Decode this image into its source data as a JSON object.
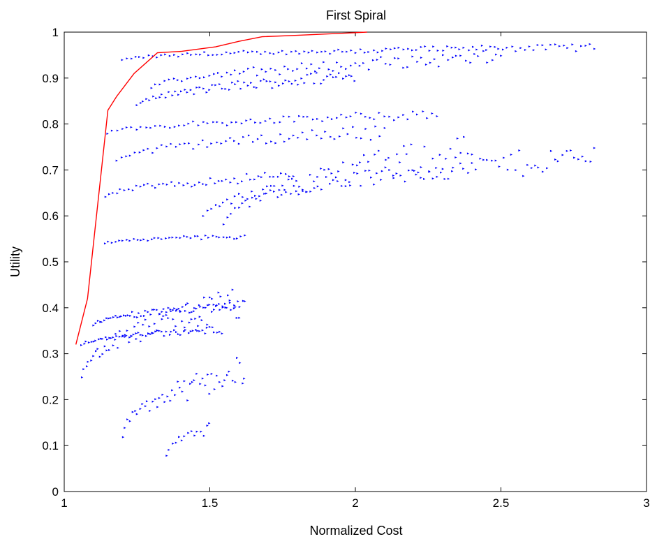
{
  "chart_data": {
    "type": "scatter",
    "title": "First Spiral",
    "xlabel": "Normalized Cost",
    "ylabel": "Utility",
    "xlim": [
      1,
      3
    ],
    "ylim": [
      0,
      1
    ],
    "x_ticks": [
      "1",
      "1.5",
      "2",
      "2.5",
      "3"
    ],
    "y_ticks": [
      "0",
      "0.1",
      "0.2",
      "0.3",
      "0.4",
      "0.5",
      "0.6",
      "0.7",
      "0.8",
      "0.9",
      "1"
    ],
    "grid": false,
    "legend": false,
    "colors": {
      "points": "#0000ff",
      "frontier": "#ff0000"
    },
    "series": [
      {
        "kind": "frontier-line",
        "color": "#ff0000",
        "x": [
          1.04,
          1.08,
          1.15,
          1.18,
          1.24,
          1.32,
          1.4,
          1.52,
          1.6,
          1.68,
          1.8,
          2.04
        ],
        "y": [
          0.32,
          0.42,
          0.83,
          0.86,
          0.91,
          0.955,
          0.958,
          0.968,
          0.98,
          0.99,
          0.993,
          1.0
        ]
      },
      {
        "kind": "scatter-bands",
        "color": "#0000ff",
        "bands": [
          {
            "x0": 1.2,
            "x1": 2.82,
            "y_start": 0.94,
            "y_end": 0.975,
            "n": 110
          },
          {
            "x0": 1.3,
            "x1": 2.5,
            "y_start": 0.88,
            "y_end": 0.96,
            "n": 80
          },
          {
            "x0": 1.25,
            "x1": 2.0,
            "y_start": 0.84,
            "y_end": 0.92,
            "n": 70
          },
          {
            "x0": 1.15,
            "x1": 2.28,
            "y_start": 0.78,
            "y_end": 0.83,
            "n": 70
          },
          {
            "x0": 1.18,
            "x1": 2.1,
            "y_start": 0.72,
            "y_end": 0.8,
            "n": 60
          },
          {
            "x0": 1.48,
            "x1": 2.82,
            "y_start": 0.6,
            "y_end": 0.76,
            "n": 100
          },
          {
            "x0": 1.55,
            "x1": 2.4,
            "y_start": 0.58,
            "y_end": 0.785,
            "n": 70
          },
          {
            "x0": 1.14,
            "x1": 1.8,
            "y_start": 0.64,
            "y_end": 0.7,
            "n": 50
          },
          {
            "x0": 1.14,
            "x1": 1.62,
            "y_start": 0.54,
            "y_end": 0.56,
            "n": 40
          },
          {
            "x0": 1.1,
            "x1": 1.62,
            "y_start": 0.36,
            "y_end": 0.42,
            "n": 70
          },
          {
            "x0": 1.06,
            "x1": 1.54,
            "y_start": 0.32,
            "y_end": 0.36,
            "n": 60
          },
          {
            "x0": 1.06,
            "x1": 1.6,
            "y_start": 0.25,
            "y_end": 0.45,
            "n": 70
          },
          {
            "x0": 1.2,
            "x1": 1.62,
            "y_start": 0.12,
            "y_end": 0.3,
            "n": 50
          },
          {
            "x0": 1.35,
            "x1": 1.5,
            "y_start": 0.08,
            "y_end": 0.15,
            "n": 15
          }
        ]
      }
    ]
  }
}
